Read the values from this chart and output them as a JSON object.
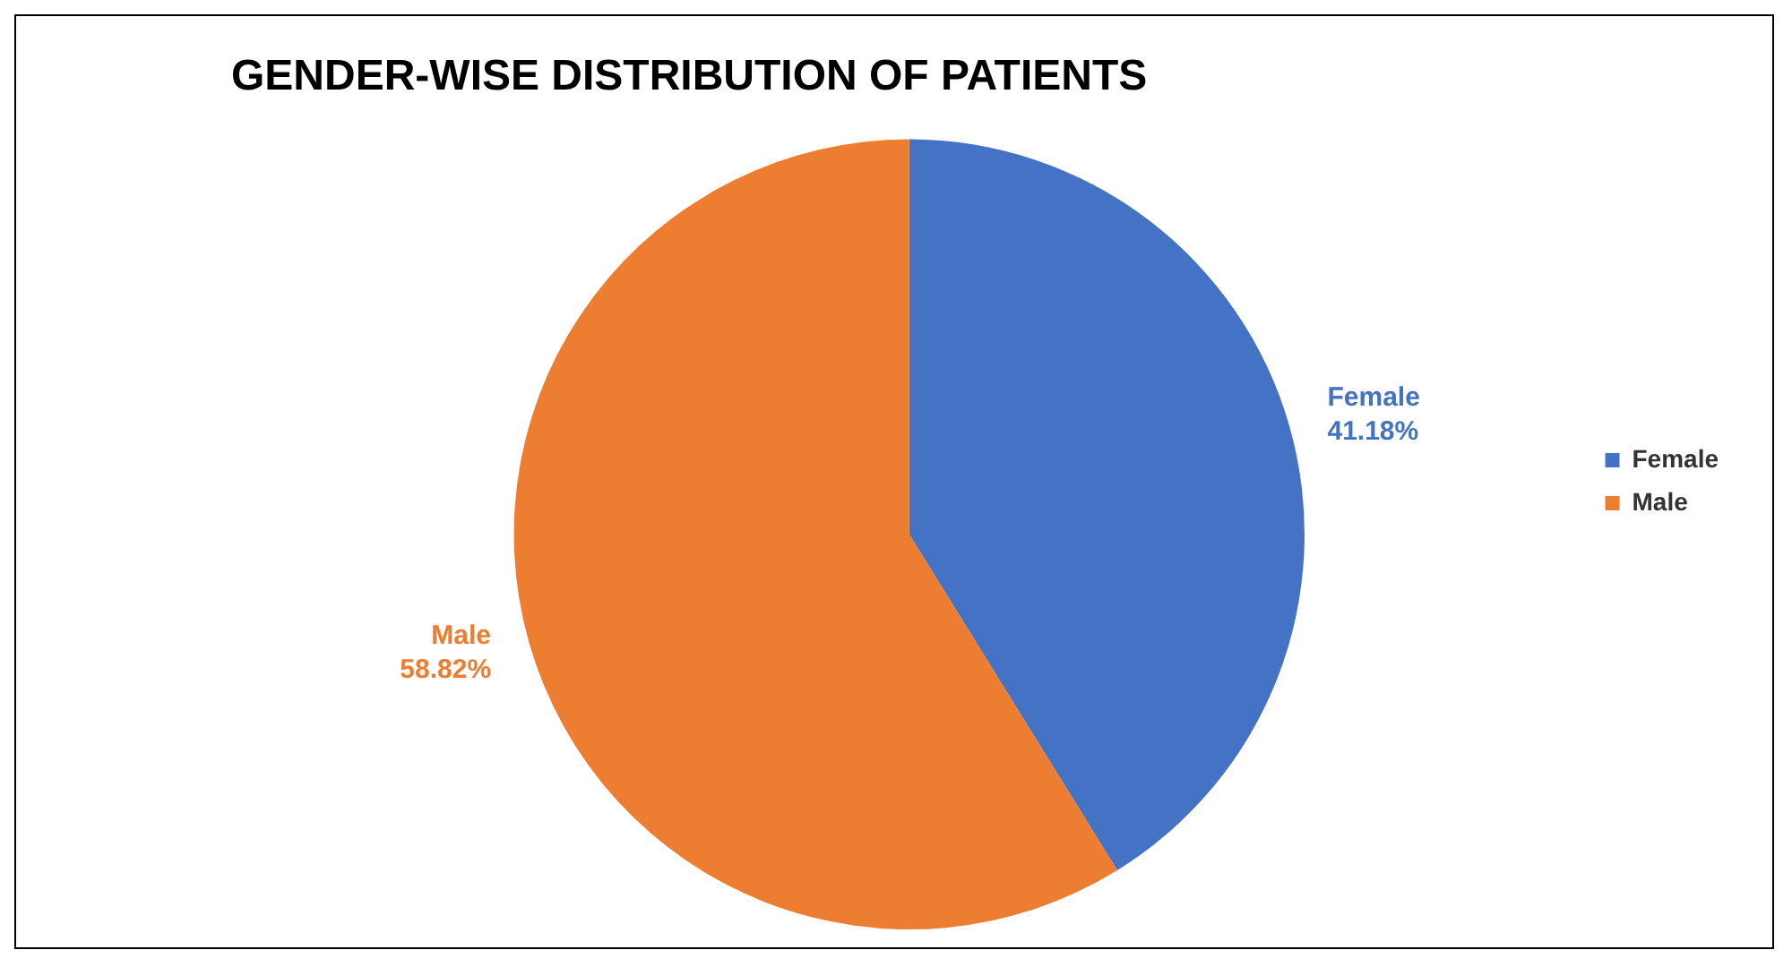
{
  "chart_data": {
    "type": "pie",
    "title": "GENDER-WISE DISTRIBUTION OF PATIENTS",
    "categories": [
      "Female",
      "Male"
    ],
    "values": [
      41.18,
      58.82
    ],
    "value_labels": [
      "41.18%",
      "58.82%"
    ],
    "colors": [
      "#4472c4",
      "#ed7d31"
    ],
    "legend": "right"
  }
}
